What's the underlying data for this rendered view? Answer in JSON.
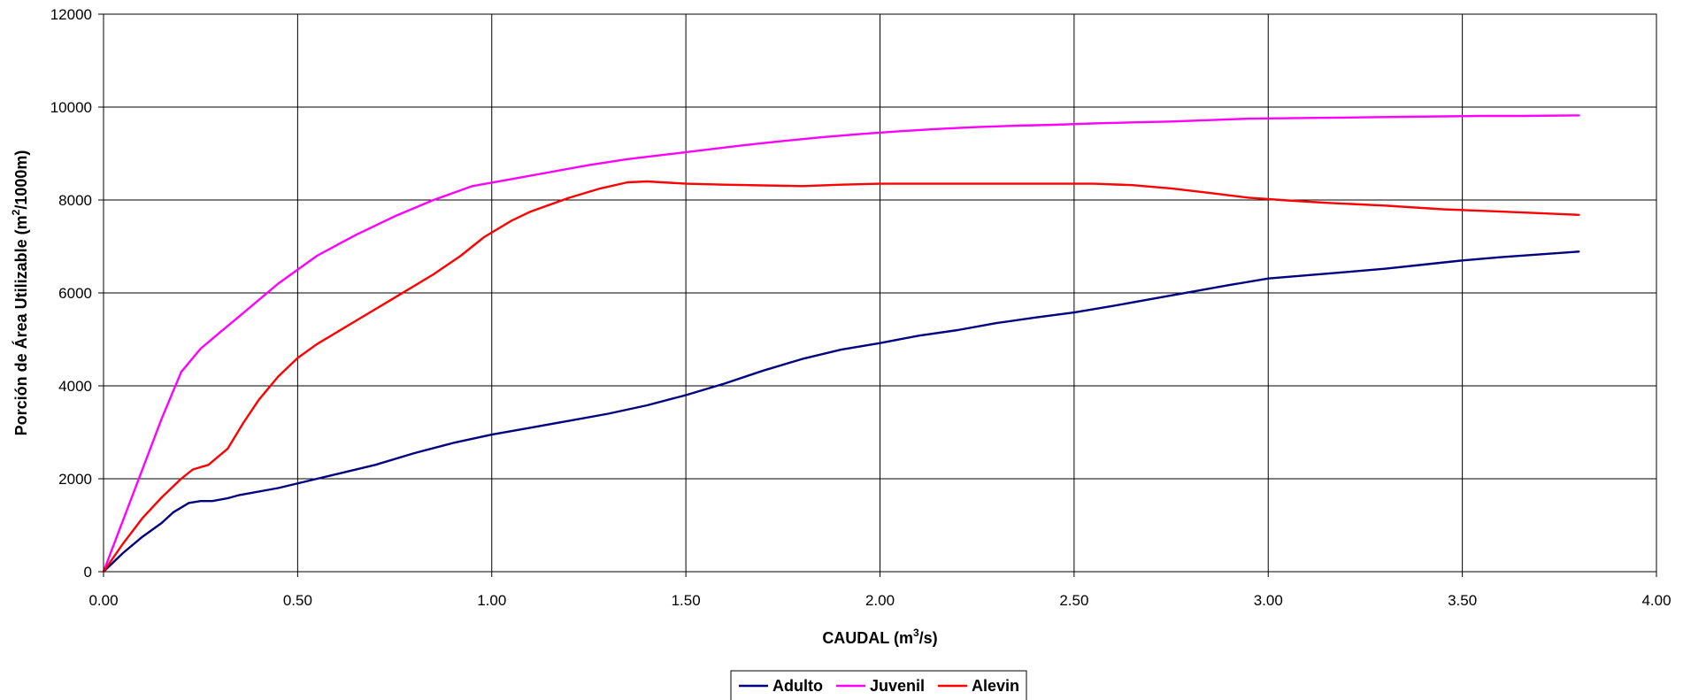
{
  "chart_data": {
    "type": "line",
    "title": "",
    "xlabel": {
      "main": "CAUDAL (m",
      "sup": "3",
      "tail": "/s)"
    },
    "ylabel": {
      "main": "Porción de Área Utilizable (m",
      "sup": "2",
      "tail": "/1000m)"
    },
    "xlim": [
      0,
      4
    ],
    "ylim": [
      0,
      12000
    ],
    "xticks": [
      0,
      0.5,
      1.0,
      1.5,
      2.0,
      2.5,
      3.0,
      3.5,
      4.0
    ],
    "xtick_labels": [
      "0.00",
      "0.50",
      "1.00",
      "1.50",
      "2.00",
      "2.50",
      "3.00",
      "3.50",
      "4.00"
    ],
    "yticks": [
      0,
      2000,
      4000,
      6000,
      8000,
      10000,
      12000
    ],
    "ytick_labels": [
      "0",
      "2000",
      "4000",
      "6000",
      "8000",
      "10000",
      "12000"
    ],
    "grid": true,
    "legend_position": "bottom-center",
    "series": [
      {
        "name": "Adulto",
        "color": "#000080",
        "x": [
          0,
          0.05,
          0.1,
          0.15,
          0.18,
          0.22,
          0.25,
          0.28,
          0.32,
          0.35,
          0.45,
          0.55,
          0.7,
          0.8,
          0.9,
          1.0,
          1.1,
          1.2,
          1.3,
          1.4,
          1.5,
          1.6,
          1.7,
          1.8,
          1.9,
          2.0,
          2.1,
          2.2,
          2.3,
          2.4,
          2.5,
          2.6,
          2.7,
          2.8,
          2.9,
          3.0,
          3.1,
          3.2,
          3.3,
          3.4,
          3.5,
          3.6,
          3.7,
          3.8
        ],
        "y": [
          0,
          400,
          750,
          1050,
          1280,
          1480,
          1520,
          1520,
          1580,
          1650,
          1800,
          2000,
          2300,
          2550,
          2770,
          2950,
          3100,
          3250,
          3400,
          3580,
          3800,
          4050,
          4330,
          4580,
          4780,
          4920,
          5080,
          5200,
          5350,
          5470,
          5580,
          5720,
          5870,
          6020,
          6170,
          6310,
          6380,
          6450,
          6520,
          6610,
          6700,
          6770,
          6830,
          6890
        ]
      },
      {
        "name": "Juvenil",
        "color": "#FF00FF",
        "x": [
          0,
          0.05,
          0.1,
          0.15,
          0.2,
          0.25,
          0.3,
          0.35,
          0.45,
          0.55,
          0.65,
          0.75,
          0.85,
          0.95,
          1.05,
          1.15,
          1.25,
          1.35,
          1.45,
          1.55,
          1.65,
          1.75,
          1.85,
          1.95,
          2.05,
          2.15,
          2.25,
          2.35,
          2.45,
          2.55,
          2.65,
          2.75,
          2.85,
          2.95,
          3.05,
          3.15,
          3.25,
          3.35,
          3.45,
          3.55,
          3.65,
          3.8
        ],
        "y": [
          0,
          1100,
          2200,
          3300,
          4300,
          4800,
          5150,
          5500,
          6200,
          6800,
          7250,
          7650,
          8000,
          8300,
          8450,
          8600,
          8750,
          8880,
          8980,
          9080,
          9180,
          9270,
          9350,
          9420,
          9480,
          9530,
          9570,
          9600,
          9620,
          9650,
          9670,
          9690,
          9720,
          9750,
          9760,
          9770,
          9780,
          9790,
          9800,
          9810,
          9810,
          9820
        ]
      },
      {
        "name": "Alevin",
        "color": "#FF0000",
        "x": [
          0,
          0.05,
          0.1,
          0.15,
          0.2,
          0.23,
          0.27,
          0.32,
          0.36,
          0.4,
          0.45,
          0.5,
          0.55,
          0.65,
          0.75,
          0.85,
          0.92,
          0.98,
          1.05,
          1.1,
          1.2,
          1.28,
          1.35,
          1.4,
          1.5,
          1.6,
          1.8,
          1.9,
          2.0,
          2.2,
          2.4,
          2.55,
          2.65,
          2.75,
          2.85,
          2.95,
          3.05,
          3.15,
          3.3,
          3.45,
          3.6,
          3.8
        ],
        "y": [
          0,
          600,
          1150,
          1600,
          2000,
          2200,
          2300,
          2650,
          3200,
          3700,
          4200,
          4600,
          4900,
          5400,
          5900,
          6400,
          6800,
          7200,
          7550,
          7750,
          8050,
          8250,
          8380,
          8400,
          8350,
          8330,
          8300,
          8330,
          8350,
          8350,
          8350,
          8350,
          8320,
          8250,
          8150,
          8050,
          7990,
          7940,
          7880,
          7800,
          7750,
          7680
        ]
      }
    ]
  }
}
